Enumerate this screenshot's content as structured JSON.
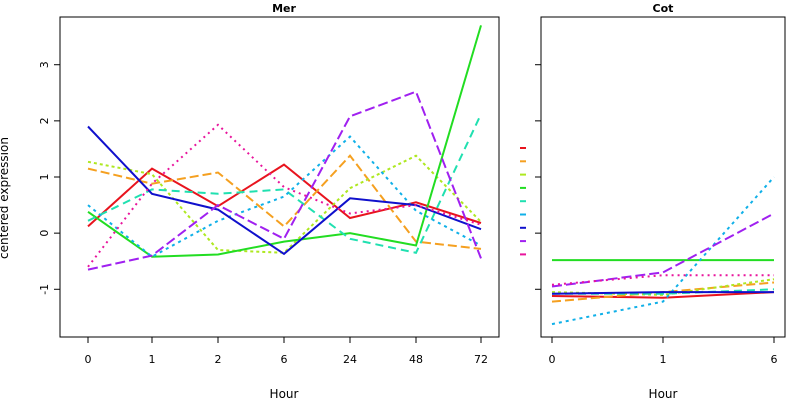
{
  "ylabel": "centered expression",
  "series_styles": [
    {
      "color": "#e8141e",
      "dash": "none"
    },
    {
      "color": "#f5a020",
      "dash": "9,4"
    },
    {
      "color": "#aee820",
      "dash": "3,3"
    },
    {
      "color": "#22dd22",
      "dash": "none"
    },
    {
      "color": "#20e0b0",
      "dash": "8,5"
    },
    {
      "color": "#10b0e8",
      "dash": "3,4"
    },
    {
      "color": "#1010cc",
      "dash": "none"
    },
    {
      "color": "#a020f0",
      "dash": "10,4"
    },
    {
      "color": "#e8149c",
      "dash": "2,4"
    }
  ],
  "chart_data": [
    {
      "type": "line",
      "title": "Mer",
      "xlabel": "Hour",
      "categories": [
        "0",
        "1",
        "2",
        "6",
        "24",
        "48",
        "72"
      ],
      "ylim": [
        -1.85,
        3.85
      ],
      "yticks": [
        -1,
        0,
        1,
        2,
        3
      ],
      "grid": false,
      "series": [
        {
          "values": [
            0.12,
            1.15,
            0.48,
            1.22,
            0.27,
            0.55,
            0.18
          ]
        },
        {
          "values": [
            1.15,
            0.88,
            1.08,
            0.12,
            1.38,
            -0.15,
            -0.28
          ]
        },
        {
          "values": [
            1.27,
            1.05,
            -0.3,
            -0.35,
            0.8,
            1.38,
            0.2
          ]
        },
        {
          "values": [
            0.38,
            -0.42,
            -0.38,
            -0.15,
            0.0,
            -0.22,
            3.7
          ]
        },
        {
          "values": [
            0.22,
            0.78,
            0.7,
            0.78,
            -0.1,
            -0.35,
            2.12
          ]
        },
        {
          "values": [
            0.5,
            -0.42,
            0.22,
            0.65,
            1.72,
            0.4,
            -0.22
          ]
        },
        {
          "values": [
            1.9,
            0.7,
            0.42,
            -0.37,
            0.62,
            0.5,
            0.07
          ]
        },
        {
          "values": [
            -0.65,
            -0.4,
            0.5,
            -0.1,
            2.08,
            2.52,
            -0.45
          ]
        },
        {
          "values": [
            -0.6,
            0.88,
            1.93,
            0.82,
            0.35,
            0.5,
            0.15
          ]
        }
      ]
    },
    {
      "type": "line",
      "title": "Cot",
      "xlabel": "Hour",
      "categories": [
        "0",
        "1",
        "6"
      ],
      "ylim": [
        -1.85,
        3.85
      ],
      "yticks": [
        -1,
        0,
        1,
        2,
        3
      ],
      "grid": false,
      "series": [
        {
          "values": [
            -1.12,
            -1.15,
            -1.05
          ]
        },
        {
          "values": [
            -1.22,
            -1.05,
            -0.88
          ]
        },
        {
          "values": [
            -1.05,
            -1.1,
            -0.82
          ]
        },
        {
          "values": [
            -0.48,
            -0.48,
            -0.48
          ]
        },
        {
          "values": [
            -1.08,
            -1.08,
            -1.0
          ]
        },
        {
          "values": [
            -1.62,
            -1.22,
            1.0
          ]
        },
        {
          "values": [
            -1.08,
            -1.05,
            -1.05
          ]
        },
        {
          "values": [
            -0.95,
            -0.7,
            0.35
          ]
        },
        {
          "values": [
            -0.92,
            -0.75,
            -0.75
          ]
        }
      ]
    }
  ]
}
